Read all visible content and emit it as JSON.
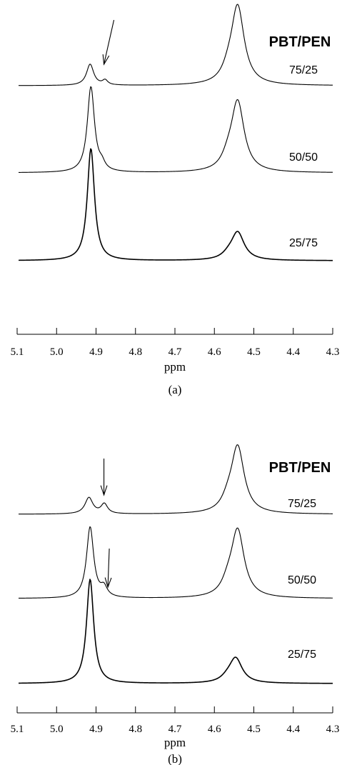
{
  "chart_data": [
    {
      "type": "line",
      "panel_label": "(a)",
      "legend_title": "PBT/PEN",
      "xlabel": "ppm",
      "xlim": [
        5.1,
        4.3
      ],
      "x_ticks": [
        "5.1",
        "5.0",
        "4.9",
        "4.8",
        "4.7",
        "4.6",
        "4.5",
        "4.4",
        "4.3"
      ],
      "grid": false,
      "series": [
        {
          "name": "75/25",
          "peaks": [
            {
              "center": 4.915,
              "height": 0.27,
              "width": 0.011
            },
            {
              "center": 4.877,
              "height": 0.06,
              "width": 0.008
            },
            {
              "center": 4.541,
              "height": 1.0,
              "width": 0.02
            },
            {
              "center": 4.565,
              "height": 0.1,
              "width": 0.018
            }
          ],
          "arrow_at": 4.88
        },
        {
          "name": "50/50",
          "peaks": [
            {
              "center": 4.913,
              "height": 1.0,
              "width": 0.011
            },
            {
              "center": 4.885,
              "height": 0.07,
              "width": 0.009
            },
            {
              "center": 4.541,
              "height": 0.82,
              "width": 0.02
            },
            {
              "center": 4.566,
              "height": 0.1,
              "width": 0.018
            }
          ]
        },
        {
          "name": "25/75",
          "peaks": [
            {
              "center": 4.913,
              "height": 1.0,
              "width": 0.011
            },
            {
              "center": 4.541,
              "height": 0.25,
              "width": 0.02
            },
            {
              "center": 4.565,
              "height": 0.03,
              "width": 0.018
            }
          ]
        }
      ]
    },
    {
      "type": "line",
      "panel_label": "(b)",
      "legend_title": "PBT/PEN",
      "xlabel": "ppm",
      "xlim": [
        5.1,
        4.3
      ],
      "x_ticks": [
        "5.1",
        "5.0",
        "4.9",
        "4.8",
        "4.7",
        "4.6",
        "4.5",
        "4.4",
        "4.3"
      ],
      "grid": false,
      "series": [
        {
          "name": "75/25",
          "peaks": [
            {
              "center": 4.918,
              "height": 0.2,
              "width": 0.012
            },
            {
              "center": 4.879,
              "height": 0.12,
              "width": 0.01
            },
            {
              "center": 4.541,
              "height": 0.82,
              "width": 0.02
            },
            {
              "center": 4.566,
              "height": 0.1,
              "width": 0.018
            }
          ],
          "arrow_at": 4.88
        },
        {
          "name": "50/50",
          "peaks": [
            {
              "center": 4.915,
              "height": 0.76,
              "width": 0.011
            },
            {
              "center": 4.88,
              "height": 0.1,
              "width": 0.01
            },
            {
              "center": 4.541,
              "height": 0.72,
              "width": 0.02
            },
            {
              "center": 4.566,
              "height": 0.1,
              "width": 0.018
            }
          ],
          "arrow_at": 4.87
        },
        {
          "name": "25/75",
          "peaks": [
            {
              "center": 4.915,
              "height": 1.0,
              "width": 0.011
            },
            {
              "center": 4.546,
              "height": 0.24,
              "width": 0.02
            },
            {
              "center": 4.568,
              "height": 0.03,
              "width": 0.018
            }
          ]
        }
      ]
    }
  ]
}
